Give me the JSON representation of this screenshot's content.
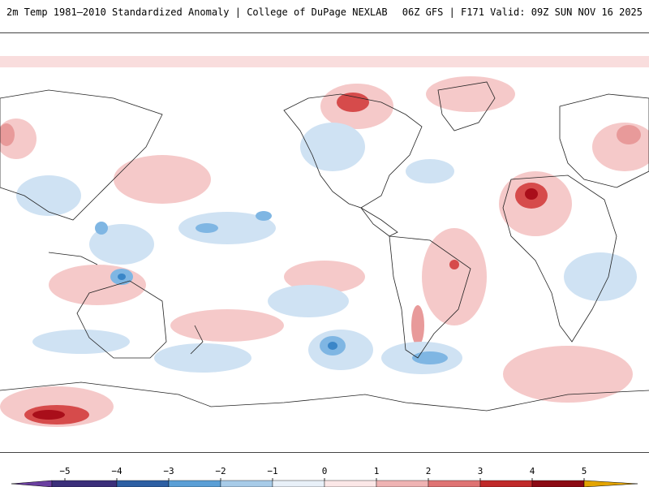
{
  "header": {
    "title_left": "2m Temp 1981–2010 Standardized Anomaly | College of DuPage NEXLAB",
    "title_right": "06Z GFS | F171 Valid: 09Z SUN NOV 16 2025"
  },
  "colorbar": {
    "ticks": [
      "−5",
      "−4",
      "−3",
      "−2",
      "−1",
      "0",
      "1",
      "2",
      "3",
      "4",
      "5"
    ],
    "colors": [
      "#6a3fa0",
      "#1f3f7a",
      "#3a86c8",
      "#7fb6e3",
      "#cfe2f3",
      "#ffffff",
      "#f7d4d4",
      "#e89a9a",
      "#d64b4b",
      "#a90e1a",
      "#e3a400"
    ]
  }
}
